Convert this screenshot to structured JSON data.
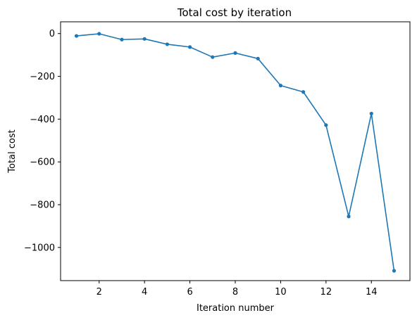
{
  "chart_data": {
    "type": "line",
    "title": "Total cost by iteration",
    "xlabel": "Iteration number",
    "ylabel": "Total cost",
    "xlim": [
      0.3,
      15.7
    ],
    "ylim": [
      -1155,
      55
    ],
    "xticks": [
      2,
      4,
      6,
      8,
      10,
      12,
      14
    ],
    "yticks": [
      0,
      -200,
      -400,
      -600,
      -800,
      -1000
    ],
    "grid": false,
    "legend": "none",
    "series": [
      {
        "color": "#1f77b4",
        "marker": "circle",
        "x": [
          1,
          2,
          3,
          4,
          5,
          6,
          7,
          8,
          9,
          10,
          11,
          12,
          13,
          14,
          15
        ],
        "y": [
          -11,
          -1,
          -28,
          -25,
          -50,
          -63,
          -110,
          -91,
          -117,
          -243,
          -273,
          -428,
          -855,
          -374,
          -1109
        ]
      }
    ]
  }
}
